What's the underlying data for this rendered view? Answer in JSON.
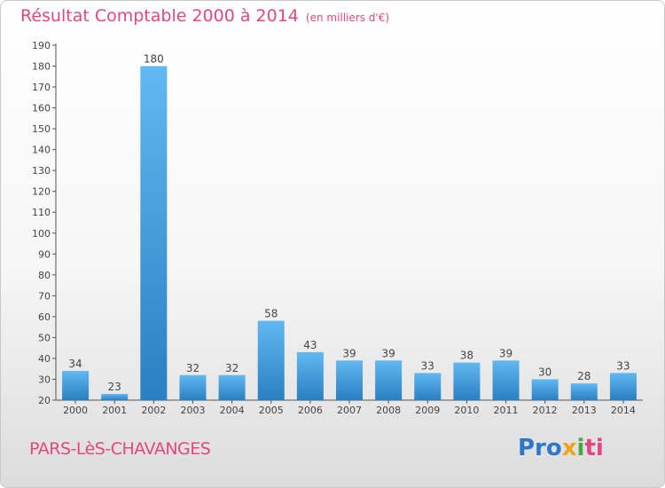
{
  "header": {
    "title": "Résultat Comptable 2000 à 2014",
    "subtitle": "(en milliers d'€)"
  },
  "footer": {
    "commune": "PARS-LèS-CHAVANGES",
    "logo": [
      "Pro",
      "x",
      "i",
      "ti"
    ]
  },
  "colors": {
    "accent": "#e3477f",
    "bar_light": "#5fb3ec",
    "bar_dark": "#2f86c8",
    "axis": "#555555"
  },
  "chart_data": {
    "type": "bar",
    "title": "Résultat Comptable 2000 à 2014",
    "subtitle": "(en milliers d'€)",
    "categories": [
      "2000",
      "2001",
      "2002",
      "2003",
      "2004",
      "2005",
      "2006",
      "2007",
      "2008",
      "2009",
      "2010",
      "2011",
      "2012",
      "2013",
      "2014"
    ],
    "values": [
      34,
      23,
      180,
      32,
      32,
      58,
      43,
      39,
      39,
      33,
      38,
      39,
      30,
      28,
      33
    ],
    "ylim": [
      20,
      190
    ],
    "yticks": [
      20,
      30,
      40,
      50,
      60,
      70,
      80,
      90,
      100,
      110,
      120,
      130,
      140,
      150,
      160,
      170,
      180,
      190
    ],
    "grid": false,
    "legend": "none"
  }
}
